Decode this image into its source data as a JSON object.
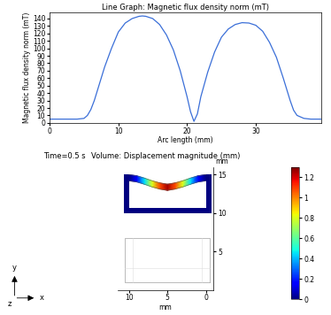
{
  "chart_data": [
    {
      "type": "line",
      "title": "Line Graph: Magnetic flux density norm (mT)",
      "xlabel": "Arc length (mm)",
      "ylabel": "Magnetic flux density norm (mT)",
      "x": [
        0,
        2,
        4,
        5,
        5.5,
        6,
        6.5,
        7,
        8,
        9,
        10,
        11,
        12,
        13,
        13.5,
        14,
        15,
        16,
        17,
        18,
        19,
        20,
        20.5,
        21,
        21.5,
        22,
        23,
        24,
        25,
        26,
        27,
        28,
        29,
        30,
        31,
        32,
        33,
        34,
        35,
        35.5,
        36,
        37,
        38,
        39.5
      ],
      "values": [
        5,
        5,
        5,
        6,
        10,
        18,
        30,
        45,
        75,
        100,
        122,
        134,
        140,
        143,
        143.5,
        143,
        140,
        132,
        118,
        98,
        70,
        35,
        15,
        2,
        12,
        35,
        68,
        95,
        115,
        126,
        132,
        134.5,
        134,
        131,
        123,
        108,
        88,
        60,
        30,
        17,
        10,
        6,
        5,
        5
      ],
      "color": "#3b6fd8",
      "xlim": [
        0,
        39.5
      ],
      "xticks": [
        0,
        10,
        20,
        30
      ],
      "ylim": [
        0,
        148
      ],
      "yticks": [
        0,
        10,
        20,
        30,
        40,
        50,
        60,
        70,
        80,
        90,
        100,
        110,
        120,
        130,
        140
      ]
    },
    {
      "type": "surface",
      "title": "Volume: Displacement magnitude (mm)",
      "subtitle": "Time=0.5 s",
      "xlabel": "mm",
      "ylabel": "mm",
      "x": [
        0,
        1,
        2,
        3,
        4,
        5,
        6,
        7,
        8,
        9,
        10
      ],
      "values": [
        0,
        0.15,
        0.45,
        0.8,
        1.08,
        1.25,
        1.08,
        0.8,
        0.45,
        0.15,
        0
      ],
      "xlim": [
        11.5,
        -1.0
      ],
      "xticks": [
        10,
        5,
        0
      ],
      "ylim": [
        0,
        16
      ],
      "yticks": [
        5,
        10,
        15
      ],
      "colorbar_range": [
        0,
        1.3
      ],
      "colorbar_ticks": [
        0,
        0.2,
        0.4,
        0.6,
        0.8,
        1,
        1.2
      ],
      "annotations": [
        "y",
        "z",
        "x"
      ]
    }
  ]
}
